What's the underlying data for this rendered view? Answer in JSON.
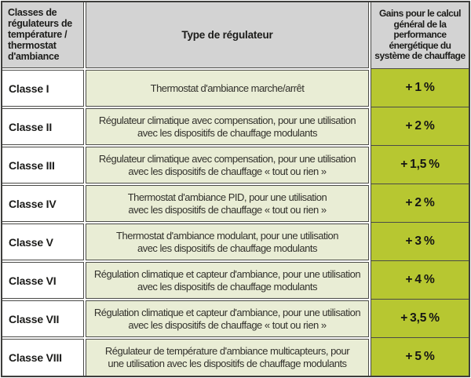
{
  "headers": {
    "classes": "Classes de\nrégulateurs de\ntempérature /\nthermostat\nd'ambiance",
    "type": "Type de régulateur",
    "gains": "Gains pour le calcul\ngénéral de la\nperformance\nénergétique du\nsystème de chauffage"
  },
  "rows": [
    {
      "classe": "Classe I",
      "type": "Thermostat d'ambiance marche/arrêt",
      "gain": "+ 1 %"
    },
    {
      "classe": "Classe II",
      "type": "Régulateur climatique avec compensation, pour une utilisation\navec les dispositifs de chauffage modulants",
      "gain": "+ 2 %"
    },
    {
      "classe": "Classe III",
      "type": "Régulateur climatique avec compensation, pour une utilisation\navec les dispositifs de chauffage « tout ou rien »",
      "gain": "+ 1,5 %"
    },
    {
      "classe": "Classe IV",
      "type": "Thermostat d'ambiance PID, pour une utilisation\navec les dispositifs de chauffage « tout ou rien »",
      "gain": "+ 2 %"
    },
    {
      "classe": "Classe V",
      "type": "Thermostat d'ambiance modulant, pour une utilisation\navec les dispositifs de chauffage modulants",
      "gain": "+ 3 %"
    },
    {
      "classe": "Classe VI",
      "type": "Régulation climatique et capteur d'ambiance, pour une utilisation\navec les dispositifs de chauffage modulants",
      "gain": "+ 4 %"
    },
    {
      "classe": "Classe VII",
      "type": "Régulation climatique et capteur d'ambiance, pour une utilisation\navec les dispositifs de chauffage « tout ou rien »",
      "gain": "+ 3,5 %"
    },
    {
      "classe": "Classe VIII",
      "type": "Régulateur de température d'ambiance multicapteurs, pour\nune utilisation avec les dispositifs de chauffage modulants",
      "gain": "+ 5 %"
    }
  ],
  "colors": {
    "header_bg": "#d3d3d3",
    "type_cell_bg": "#e9edd5",
    "gain_cell_bg": "#b7c731",
    "border": "#4b4b48"
  }
}
